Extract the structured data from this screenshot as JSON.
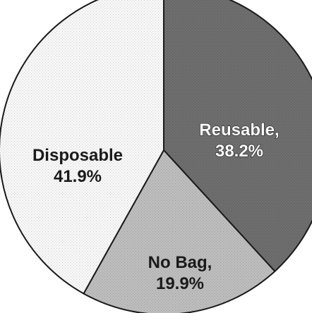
{
  "chart_data": {
    "type": "pie",
    "slices": [
      {
        "key": "reusable",
        "value": 38.2,
        "label_lines": [
          "Reusable,",
          "38.2%"
        ],
        "color": "#6e6e6e",
        "text_style": "light"
      },
      {
        "key": "no-bag",
        "value": 19.9,
        "label_lines": [
          "No Bag,",
          "19.9%"
        ],
        "color": "#bdbdbd",
        "text_style": "dark"
      },
      {
        "key": "disposable",
        "value": 41.9,
        "label_lines": [
          "Disposable",
          "41.9%"
        ],
        "color": "#f7f7f7",
        "text_style": "dark"
      }
    ],
    "start_angle_deg": 0,
    "direction": "clockwise",
    "border_color": "#1a1a1a"
  }
}
